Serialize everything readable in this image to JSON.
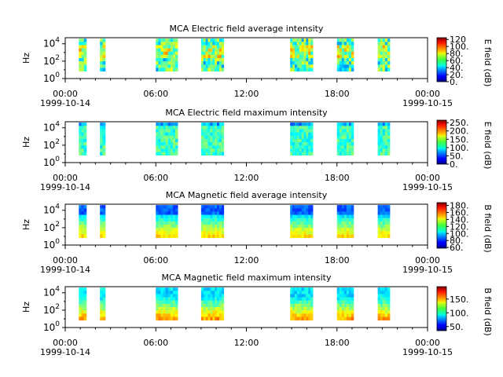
{
  "chart_data": [
    {
      "type": "heatmap",
      "title": "MCA  Electric field average intensity",
      "ylabel": "Hz",
      "x_tick_labels": [
        "00:00",
        "06:00",
        "12:00",
        "18:00",
        "00:00"
      ],
      "x_date_labels": [
        "1999-10-14",
        "",
        "",
        "",
        "1999-10-15"
      ],
      "y_tick_labels": [
        {
          "base": "10",
          "exp": "0"
        },
        {
          "base": "10",
          "exp": "2"
        },
        {
          "base": "10",
          "exp": "4"
        }
      ],
      "xlim": [
        "1999-10-14 00:00",
        "1999-10-15 00:00"
      ],
      "colorbar": {
        "label": "E field (dB)",
        "ticks": [
          "0.",
          "20.",
          "40.",
          "60.",
          "80.",
          "100.",
          "120"
        ],
        "range": [
          0,
          125
        ]
      },
      "data_intervals_hours": [
        [
          0.9,
          1.4
        ],
        [
          2.3,
          2.65
        ],
        [
          6.0,
          7.45
        ],
        [
          9.0,
          10.5
        ],
        [
          14.9,
          16.4
        ],
        [
          18.0,
          19.1
        ],
        [
          20.7,
          21.5
        ]
      ],
      "typical_value_db": 55
    },
    {
      "type": "heatmap",
      "title": "MCA  Electric field maximum intensity",
      "ylabel": "Hz",
      "x_tick_labels": [
        "00:00",
        "06:00",
        "12:00",
        "18:00",
        "00:00"
      ],
      "x_date_labels": [
        "1999-10-14",
        "",
        "",
        "",
        "1999-10-15"
      ],
      "y_tick_labels": [
        {
          "base": "10",
          "exp": "0"
        },
        {
          "base": "10",
          "exp": "2"
        },
        {
          "base": "10",
          "exp": "4"
        }
      ],
      "xlim": [
        "1999-10-14 00:00",
        "1999-10-15 00:00"
      ],
      "colorbar": {
        "label": "E field (dB)",
        "ticks": [
          "0.",
          "50.",
          "100.",
          "150.",
          "200.",
          "250."
        ],
        "range": [
          0,
          265
        ]
      },
      "data_intervals_hours": [
        [
          0.9,
          1.4
        ],
        [
          2.3,
          2.65
        ],
        [
          6.0,
          7.45
        ],
        [
          9.0,
          10.5
        ],
        [
          14.9,
          16.4
        ],
        [
          18.0,
          19.1
        ],
        [
          20.7,
          21.5
        ]
      ],
      "typical_value_db": 115
    },
    {
      "type": "heatmap",
      "title": "MCA  Magnetic field average intensity",
      "ylabel": "Hz",
      "x_tick_labels": [
        "00:00",
        "06:00",
        "12:00",
        "18:00",
        "00:00"
      ],
      "x_date_labels": [
        "1999-10-14",
        "",
        "",
        "",
        "1999-10-15"
      ],
      "y_tick_labels": [
        {
          "base": "10",
          "exp": "0"
        },
        {
          "base": "10",
          "exp": "2"
        },
        {
          "base": "10",
          "exp": "4"
        }
      ],
      "xlim": [
        "1999-10-14 00:00",
        "1999-10-15 00:00"
      ],
      "colorbar": {
        "label": "B field (dB)",
        "ticks": [
          "60.",
          "80.",
          "100.",
          "120.",
          "140.",
          "160.",
          "180."
        ],
        "range": [
          58,
          188
        ]
      },
      "data_intervals_hours": [
        [
          0.9,
          1.4
        ],
        [
          2.3,
          2.65
        ],
        [
          6.0,
          7.45
        ],
        [
          9.0,
          10.5
        ],
        [
          14.9,
          16.4
        ],
        [
          18.0,
          19.1
        ],
        [
          20.7,
          21.5
        ]
      ],
      "typical_value_db": 115
    },
    {
      "type": "heatmap",
      "title": "MCA  Magnetic field maximum intensity",
      "ylabel": "Hz",
      "x_tick_labels": [
        "00:00",
        "06:00",
        "12:00",
        "18:00",
        "00:00"
      ],
      "x_date_labels": [
        "1999-10-14",
        "",
        "",
        "",
        "1999-10-15"
      ],
      "y_tick_labels": [
        {
          "base": "10",
          "exp": "0"
        },
        {
          "base": "10",
          "exp": "2"
        },
        {
          "base": "10",
          "exp": "4"
        }
      ],
      "xlim": [
        "1999-10-14 00:00",
        "1999-10-15 00:00"
      ],
      "colorbar": {
        "label": "B field (dB)",
        "ticks": [
          "50.",
          "100.",
          "150."
        ],
        "range": [
          35,
          195
        ]
      },
      "data_intervals_hours": [
        [
          0.9,
          1.4
        ],
        [
          2.3,
          2.65
        ],
        [
          6.0,
          7.45
        ],
        [
          9.0,
          10.5
        ],
        [
          14.9,
          16.4
        ],
        [
          18.0,
          19.1
        ],
        [
          20.7,
          21.5
        ]
      ],
      "typical_value_db": 110
    }
  ]
}
